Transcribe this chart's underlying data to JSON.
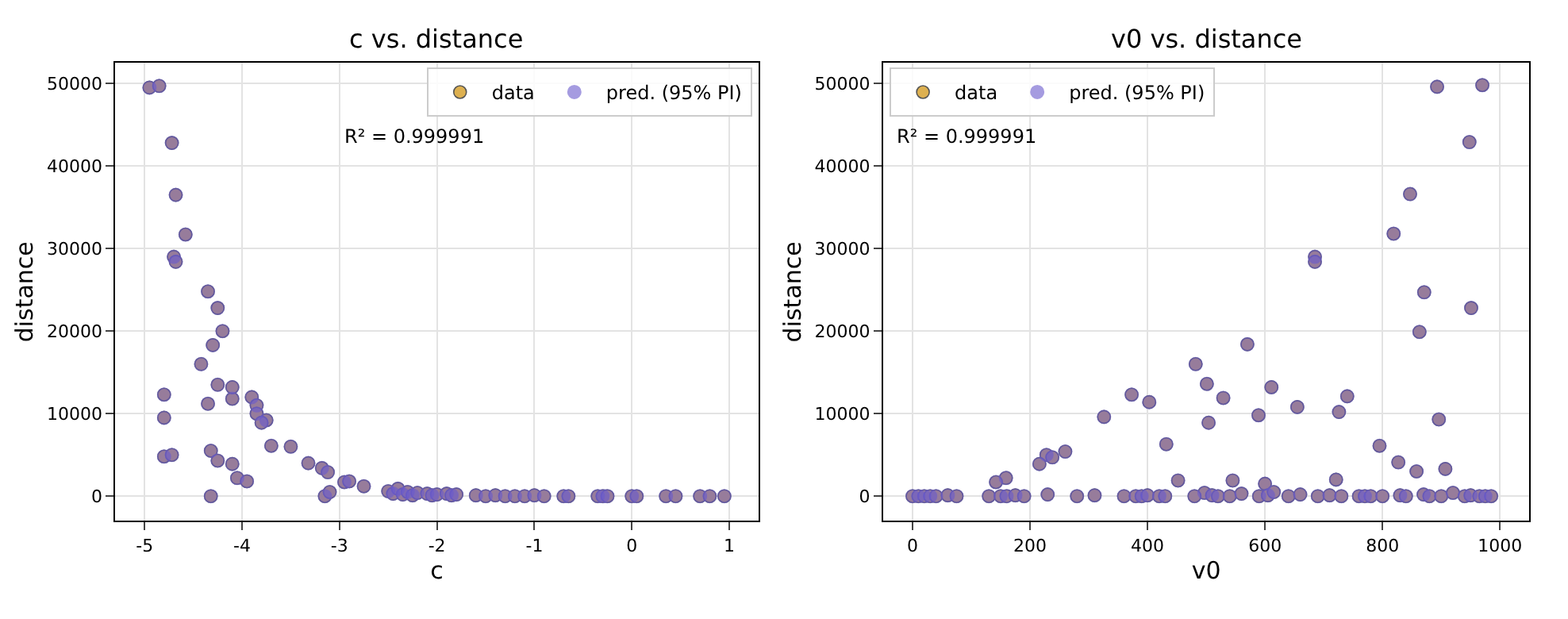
{
  "chart_data": [
    {
      "type": "scatter",
      "title": "c vs. distance",
      "xlabel": "c",
      "ylabel": "distance",
      "annotations": [
        "R² = 0.999991"
      ],
      "x": [
        -4.95,
        -4.85,
        -4.72,
        -4.68,
        -4.58,
        -4.7,
        -4.68,
        -4.35,
        -4.25,
        -4.2,
        -4.3,
        -4.42,
        -4.8,
        -4.8,
        -4.8,
        -4.72,
        -4.35,
        -4.25,
        -4.32,
        -4.25,
        -4.05,
        -3.95,
        -4.1,
        -4.1,
        -3.9,
        -3.85,
        -3.85,
        -3.75,
        -3.8,
        -4.1,
        -3.7,
        -3.5,
        -3.32,
        -3.18,
        -3.12,
        -3.15,
        -3.1,
        -2.95,
        -2.9,
        -2.75,
        -4.32,
        -2.5,
        -2.45,
        -2.4,
        -2.35,
        -2.3,
        -2.25,
        -2.2,
        -2.1,
        -2.05,
        -2.0,
        -1.9,
        -1.85,
        -1.8,
        -1.6,
        -1.5,
        -1.4,
        -1.3,
        -1.2,
        -1.1,
        -1.0,
        -0.9,
        -0.7,
        -0.65,
        -0.35,
        -0.3,
        -0.25,
        0.0,
        0.05,
        0.35,
        0.45,
        0.7,
        0.8,
        0.95
      ],
      "series": [
        {
          "name": "data",
          "color": "#ddb050",
          "values": [
            49500,
            49700,
            42800,
            36500,
            31700,
            29000,
            28400,
            24800,
            22800,
            20000,
            18300,
            16000,
            12300,
            9500,
            4800,
            5000,
            11200,
            13500,
            5500,
            4300,
            2200,
            1800,
            3900,
            11800,
            12000,
            11000,
            10000,
            9200,
            8900,
            13200,
            6100,
            6000,
            4000,
            3400,
            2900,
            0,
            500,
            1700,
            1800,
            1200,
            0,
            600,
            300,
            900,
            200,
            500,
            100,
            400,
            300,
            100,
            200,
            300,
            100,
            200,
            100,
            0,
            100,
            0,
            0,
            0,
            100,
            0,
            0,
            0,
            0,
            0,
            0,
            0,
            0,
            0,
            0,
            0,
            0,
            0
          ]
        },
        {
          "name": "pred. (95% PI)",
          "color": "#6a5acd",
          "values": [
            49500,
            49700,
            42800,
            36500,
            31700,
            29000,
            28400,
            24800,
            22800,
            20000,
            18300,
            16000,
            12300,
            9500,
            4800,
            5000,
            11200,
            13500,
            5500,
            4300,
            2200,
            1800,
            3900,
            11800,
            12000,
            11000,
            10000,
            9200,
            8900,
            13200,
            6100,
            6000,
            4000,
            3400,
            2900,
            0,
            500,
            1700,
            1800,
            1200,
            0,
            600,
            300,
            900,
            200,
            500,
            100,
            400,
            300,
            100,
            200,
            300,
            100,
            200,
            100,
            0,
            100,
            0,
            0,
            0,
            100,
            0,
            0,
            0,
            0,
            0,
            0,
            0,
            0,
            0,
            0,
            0,
            0,
            0
          ]
        }
      ],
      "xlim": [
        -5.3,
        1.3
      ],
      "xticks": [
        -5,
        -4,
        -3,
        -2,
        -1,
        0,
        1
      ],
      "ylim": [
        -3000,
        52500
      ],
      "yticks": [
        0,
        10000,
        20000,
        30000,
        40000,
        50000
      ],
      "grid": true,
      "legend": "top right",
      "marker": "circle"
    },
    {
      "type": "scatter",
      "title": "v0 vs. distance",
      "xlabel": "v0",
      "ylabel": "distance",
      "annotations": [
        "R² = 0.999991"
      ],
      "x": [
        893,
        970,
        948,
        847,
        819,
        685,
        685,
        871,
        951,
        863,
        570,
        482,
        501,
        611,
        529,
        740,
        655,
        726,
        504,
        589,
        896,
        795,
        827,
        858,
        907,
        545,
        721,
        600,
        326,
        373,
        403,
        432,
        452,
        260,
        228,
        216,
        238,
        159,
        142,
        497,
        510,
        520,
        540,
        560,
        590,
        605,
        615,
        640,
        660,
        690,
        710,
        730,
        760,
        770,
        780,
        800,
        830,
        840,
        870,
        880,
        900,
        920,
        940,
        950,
        965,
        975,
        985,
        0,
        10,
        20,
        30,
        40,
        60,
        75,
        130,
        150,
        160,
        175,
        190,
        230,
        280,
        310,
        360,
        380,
        390,
        400,
        420,
        430,
        480
      ],
      "series": [
        {
          "name": "data",
          "color": "#ddb050",
          "values": [
            49600,
            49800,
            42900,
            36600,
            31800,
            29000,
            28400,
            24700,
            22800,
            19900,
            18400,
            16000,
            13600,
            13200,
            11900,
            12100,
            10800,
            10200,
            8900,
            9800,
            9300,
            6100,
            4100,
            3000,
            3300,
            1900,
            2000,
            1500,
            9600,
            12300,
            11400,
            6300,
            1900,
            5400,
            5000,
            3900,
            4700,
            2200,
            1700,
            400,
            100,
            0,
            0,
            300,
            0,
            100,
            500,
            0,
            200,
            0,
            100,
            0,
            0,
            0,
            0,
            0,
            100,
            0,
            200,
            0,
            0,
            400,
            0,
            100,
            0,
            0,
            0,
            0,
            0,
            0,
            0,
            0,
            100,
            0,
            0,
            0,
            0,
            100,
            0,
            200,
            0,
            100,
            0,
            0,
            0,
            100,
            0,
            0,
            0
          ]
        },
        {
          "name": "pred. (95% PI)",
          "color": "#6a5acd",
          "values": [
            49600,
            49800,
            42900,
            36600,
            31800,
            29000,
            28400,
            24700,
            22800,
            19900,
            18400,
            16000,
            13600,
            13200,
            11900,
            12100,
            10800,
            10200,
            8900,
            9800,
            9300,
            6100,
            4100,
            3000,
            3300,
            1900,
            2000,
            1500,
            9600,
            12300,
            11400,
            6300,
            1900,
            5400,
            5000,
            3900,
            4700,
            2200,
            1700,
            400,
            100,
            0,
            0,
            300,
            0,
            100,
            500,
            0,
            200,
            0,
            100,
            0,
            0,
            0,
            0,
            0,
            100,
            0,
            200,
            0,
            0,
            400,
            0,
            100,
            0,
            0,
            0,
            0,
            0,
            0,
            0,
            0,
            100,
            0,
            0,
            0,
            0,
            100,
            0,
            200,
            0,
            100,
            0,
            0,
            0,
            100,
            0,
            0,
            0
          ]
        }
      ],
      "xlim": [
        -50,
        1050
      ],
      "xticks": [
        0,
        200,
        400,
        600,
        800,
        1000
      ],
      "ylim": [
        -3000,
        52500
      ],
      "yticks": [
        0,
        10000,
        20000,
        30000,
        40000,
        50000
      ],
      "grid": true,
      "legend": "top left",
      "marker": "circle"
    }
  ]
}
